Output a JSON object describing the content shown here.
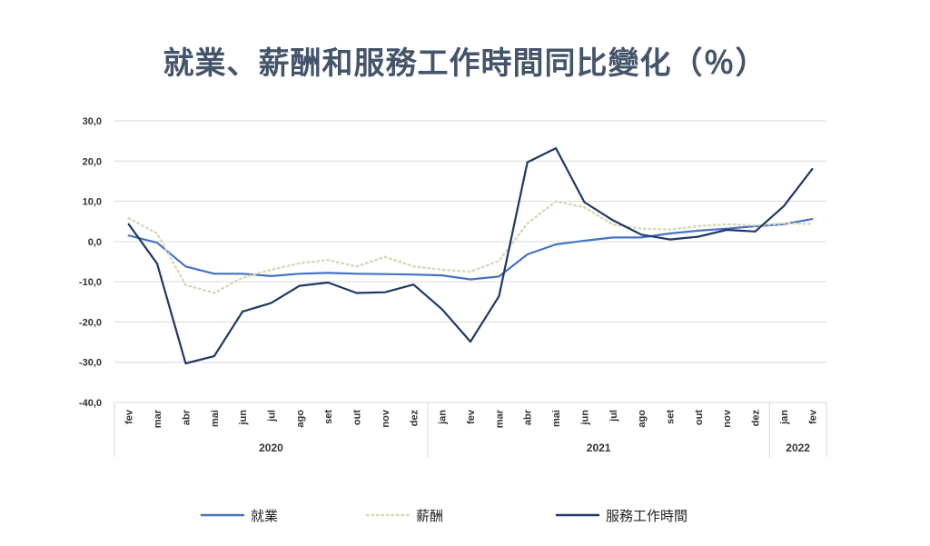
{
  "chart_data": {
    "type": "line",
    "title": "就業、薪酬和服務工作時間同比變化（％）",
    "x": [
      "fev",
      "mar",
      "abr",
      "mai",
      "jun",
      "jul",
      "ago",
      "set",
      "out",
      "nov",
      "dez",
      "jan",
      "fev",
      "mar",
      "abr",
      "mai",
      "jun",
      "jul",
      "ago",
      "set",
      "out",
      "nov",
      "dez",
      "jan",
      "fev"
    ],
    "year_groups": [
      {
        "label": "2020",
        "count": 11
      },
      {
        "label": "2021",
        "count": 12
      },
      {
        "label": "2022",
        "count": 2
      }
    ],
    "ylim": [
      -40,
      30
    ],
    "yticks": [
      30,
      20,
      10,
      0,
      -10,
      -20,
      -30,
      -40
    ],
    "ytick_labels": [
      "30,0",
      "20,0",
      "10,0",
      "0,0",
      "-10,0",
      "-20,0",
      "-30,0",
      "-40,0"
    ],
    "grid": true,
    "legend_position": "bottom",
    "series": [
      {
        "name": "就業",
        "color": "#4472c4",
        "style": "solid",
        "values": [
          1.5,
          -0.3,
          -6.2,
          -8.0,
          -8.0,
          -8.6,
          -8.0,
          -7.8,
          -8.0,
          -8.1,
          -8.2,
          -8.4,
          -9.4,
          -8.7,
          -3.2,
          -0.7,
          0.2,
          1.0,
          1.0,
          2.0,
          2.7,
          3.2,
          3.8,
          4.3,
          5.6
        ]
      },
      {
        "name": "薪酬",
        "color": "#d6d8b8",
        "style": "dotted",
        "values": [
          5.8,
          2.0,
          -10.8,
          -12.8,
          -9.0,
          -7.0,
          -5.4,
          -4.6,
          -6.2,
          -3.8,
          -6.2,
          -7.0,
          -7.5,
          -4.8,
          4.5,
          10.0,
          8.5,
          4.2,
          3.2,
          3.0,
          3.8,
          4.3,
          4.0,
          4.5,
          4.4
        ]
      },
      {
        "name": "服務工作時間",
        "color": "#1f3864",
        "style": "solid",
        "values": [
          4.3,
          -5.5,
          -30.3,
          -28.5,
          -17.4,
          -15.3,
          -11.0,
          -10.2,
          -12.8,
          -12.6,
          -10.7,
          -16.8,
          -24.9,
          -13.6,
          19.7,
          23.2,
          9.8,
          5.3,
          1.7,
          0.5,
          1.2,
          2.9,
          2.5,
          8.8,
          18.0
        ]
      }
    ]
  }
}
